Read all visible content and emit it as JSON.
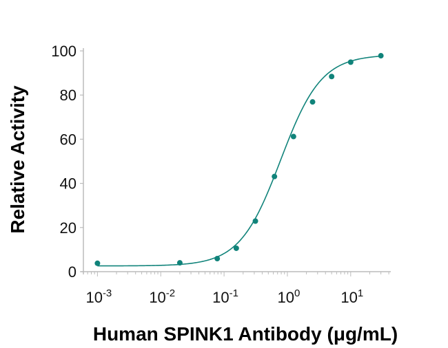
{
  "chart_data": {
    "type": "scatter",
    "title": "",
    "xlabel": "Human SPINK1 Antibody (μg/mL)",
    "ylabel": "Relative Activity",
    "x_scale": "log",
    "xlim": [
      0.0006,
      43
    ],
    "ylim": [
      0,
      100
    ],
    "x_ticks": [
      {
        "base": "10",
        "exp": "-3",
        "value": 0.001
      },
      {
        "base": "10",
        "exp": "-2",
        "value": 0.01
      },
      {
        "base": "10",
        "exp": "-1",
        "value": 0.1
      },
      {
        "base": "10",
        "exp": "0",
        "value": 1
      },
      {
        "base": "10",
        "exp": "1",
        "value": 10
      }
    ],
    "y_ticks": [
      "0",
      "20",
      "40",
      "60",
      "80",
      "100"
    ],
    "grid": false,
    "legend": "none",
    "color": "#10837a",
    "series": [
      {
        "x": [
          0.001,
          0.02,
          0.078,
          0.156,
          0.3125,
          0.625,
          1.25,
          2.5,
          5,
          10,
          30
        ],
        "y": [
          3.8,
          4.0,
          5.9,
          10.6,
          22.9,
          43.1,
          61.2,
          76.9,
          88.4,
          94.9,
          97.8
        ]
      }
    ],
    "fit": {
      "model": "4PL",
      "bottom": 2.6,
      "top": 98.3,
      "ec50": 0.78,
      "hill": 1.35
    }
  }
}
